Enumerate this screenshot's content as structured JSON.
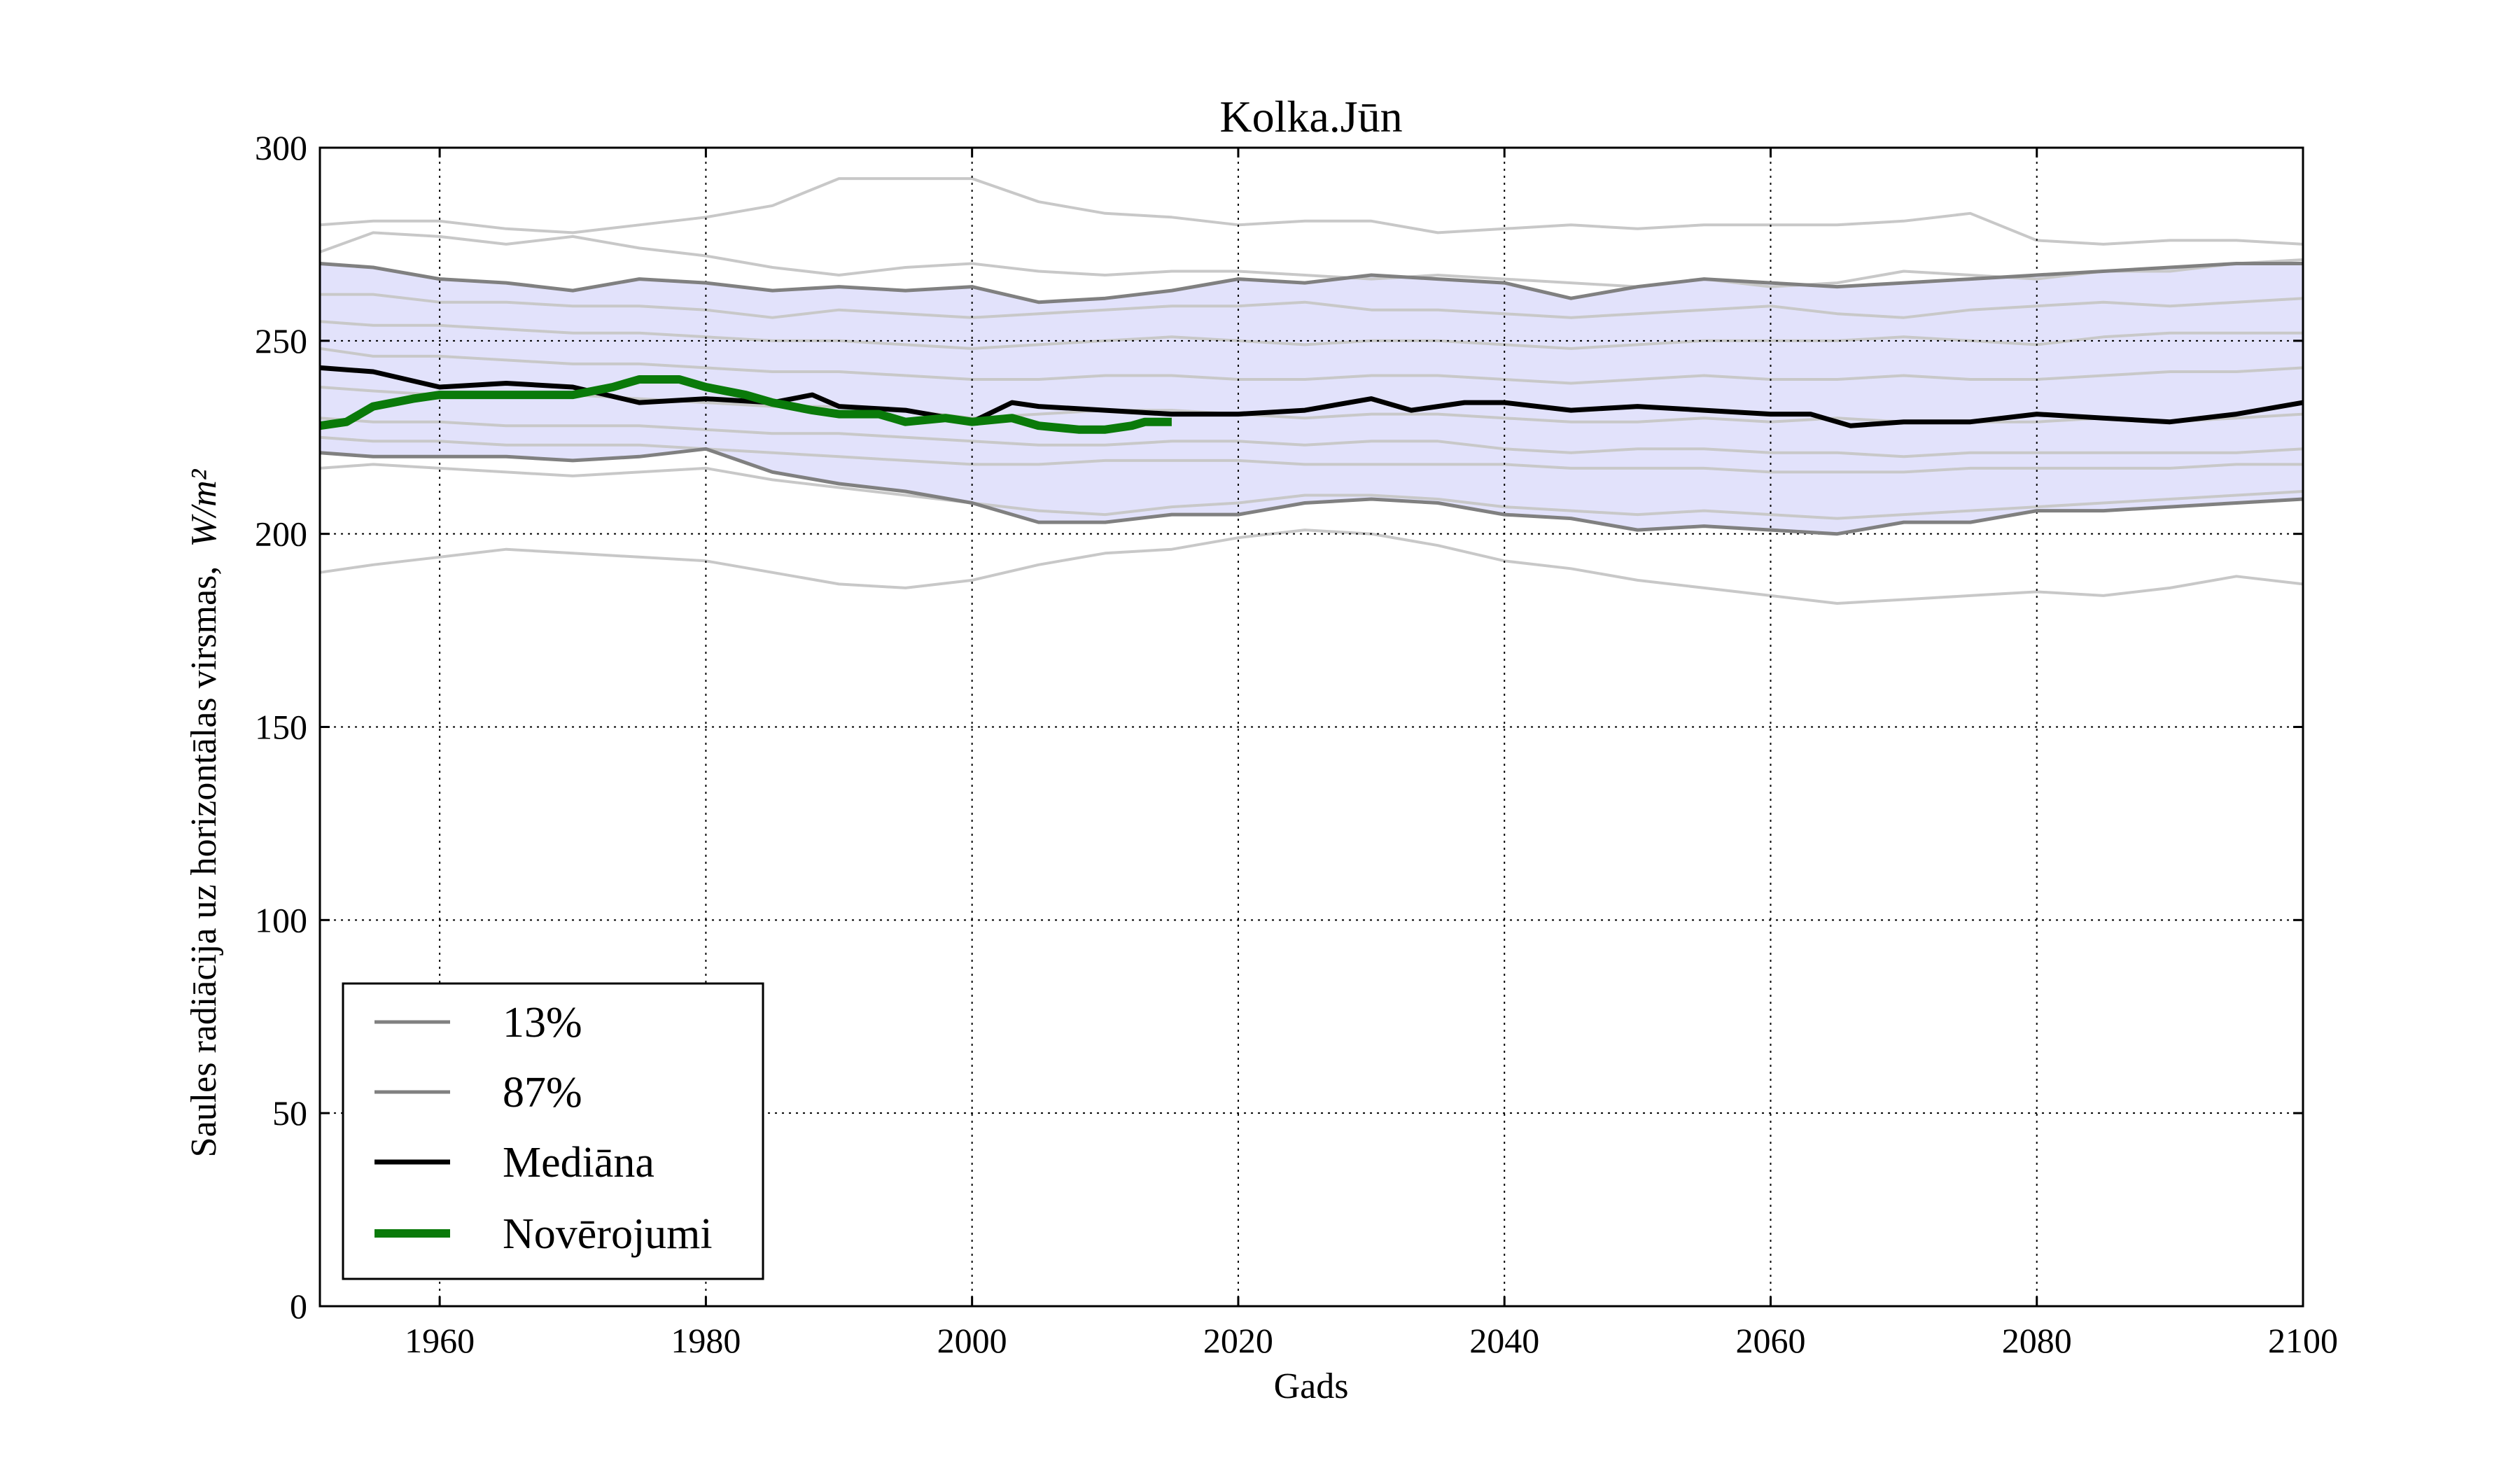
{
  "chart_data": {
    "type": "line",
    "title": "Kolka.Jūn",
    "xlabel": "Gads",
    "ylabel_text": "Saules radiācija uz horizontālas virsmas,",
    "ylabel_units": "W/m²",
    "xlim": [
      1951,
      2100
    ],
    "ylim": [
      0,
      300
    ],
    "xticks": [
      1960,
      1980,
      2000,
      2020,
      2040,
      2060,
      2080,
      2100
    ],
    "yticks": [
      0,
      50,
      100,
      150,
      200,
      250,
      300
    ],
    "grid": true,
    "legend_position": "lower-left",
    "colors": {
      "band": "#e2e2fb",
      "ensemble": "#c8c8c8",
      "percentile": "#808080",
      "median": "#000000",
      "observations": "#0a7a0a"
    },
    "series": [
      {
        "name": "13%",
        "x": [
          1951,
          1955,
          1960,
          1965,
          1970,
          1975,
          1980,
          1985,
          1990,
          1995,
          2000,
          2005,
          2010,
          2015,
          2020,
          2025,
          2030,
          2035,
          2040,
          2045,
          2050,
          2055,
          2060,
          2065,
          2070,
          2075,
          2080,
          2085,
          2090,
          2095,
          2100
        ],
        "y": [
          221,
          220,
          220,
          220,
          219,
          220,
          222,
          216,
          213,
          211,
          208,
          203,
          203,
          205,
          205,
          208,
          209,
          208,
          205,
          204,
          201,
          202,
          201,
          200,
          203,
          203,
          206,
          206,
          207,
          208,
          209
        ]
      },
      {
        "name": "87%",
        "x": [
          1951,
          1955,
          1960,
          1965,
          1970,
          1975,
          1980,
          1985,
          1990,
          1995,
          2000,
          2005,
          2010,
          2015,
          2020,
          2025,
          2030,
          2035,
          2040,
          2045,
          2050,
          2055,
          2060,
          2065,
          2070,
          2075,
          2080,
          2085,
          2090,
          2095,
          2100
        ],
        "y": [
          270,
          269,
          266,
          265,
          263,
          266,
          265,
          263,
          264,
          263,
          264,
          260,
          261,
          263,
          266,
          265,
          267,
          266,
          265,
          261,
          264,
          266,
          265,
          264,
          265,
          266,
          267,
          268,
          269,
          270,
          270
        ]
      },
      {
        "name": "Mediāna",
        "x": [
          1951,
          1955,
          1960,
          1965,
          1970,
          1975,
          1980,
          1985,
          1988,
          1990,
          1995,
          2000,
          2003,
          2005,
          2010,
          2015,
          2020,
          2025,
          2030,
          2033,
          2037,
          2040,
          2045,
          2050,
          2055,
          2060,
          2063,
          2066,
          2070,
          2075,
          2080,
          2085,
          2090,
          2095,
          2100
        ],
        "y": [
          243,
          242,
          238,
          239,
          238,
          234,
          235,
          234,
          236,
          233,
          232,
          229,
          234,
          233,
          232,
          231,
          231,
          232,
          235,
          232,
          234,
          234,
          232,
          233,
          232,
          231,
          231,
          228,
          229,
          229,
          231,
          230,
          229,
          231,
          234
        ]
      },
      {
        "name": "Novērojumi",
        "x": [
          1951,
          1953,
          1955,
          1958,
          1960,
          1965,
          1970,
          1973,
          1975,
          1978,
          1980,
          1983,
          1985,
          1988,
          1990,
          1993,
          1995,
          1998,
          2000,
          2003,
          2005,
          2008,
          2010,
          2012,
          2013,
          2015
        ],
        "y": [
          228,
          229,
          233,
          235,
          236,
          236,
          236,
          238,
          240,
          240,
          238,
          236,
          234,
          232,
          231,
          231,
          229,
          230,
          229,
          230,
          228,
          227,
          227,
          228,
          229,
          229
        ]
      }
    ],
    "ensemble": [
      [
        280,
        281,
        281,
        279,
        278,
        280,
        282,
        285,
        292,
        292,
        292,
        286,
        283,
        282,
        280,
        281,
        281,
        278,
        279,
        280,
        279,
        280,
        280,
        280,
        281,
        283,
        276,
        275,
        276,
        276,
        275
      ],
      [
        273,
        278,
        277,
        275,
        277,
        274,
        272,
        269,
        267,
        269,
        270,
        268,
        267,
        268,
        268,
        267,
        266,
        267,
        266,
        265,
        264,
        266,
        264,
        265,
        268,
        267,
        266,
        268,
        268,
        270,
        271
      ],
      [
        262,
        262,
        260,
        260,
        259,
        259,
        258,
        256,
        258,
        257,
        256,
        257,
        258,
        259,
        259,
        260,
        258,
        258,
        257,
        256,
        257,
        258,
        259,
        257,
        256,
        258,
        259,
        260,
        259,
        260,
        261
      ],
      [
        255,
        254,
        254,
        253,
        252,
        252,
        251,
        250,
        250,
        249,
        248,
        249,
        250,
        251,
        250,
        249,
        250,
        250,
        249,
        248,
        249,
        250,
        250,
        250,
        251,
        250,
        249,
        251,
        252,
        252,
        252
      ],
      [
        248,
        246,
        246,
        245,
        244,
        244,
        243,
        242,
        242,
        241,
        240,
        240,
        241,
        241,
        240,
        240,
        241,
        241,
        240,
        239,
        240,
        241,
        240,
        240,
        241,
        240,
        240,
        241,
        242,
        242,
        243
      ],
      [
        238,
        237,
        236,
        236,
        236,
        235,
        234,
        233,
        233,
        232,
        230,
        231,
        232,
        232,
        231,
        230,
        231,
        231,
        230,
        229,
        229,
        230,
        229,
        230,
        229,
        229,
        229,
        230,
        229,
        230,
        231
      ],
      [
        230,
        229,
        229,
        228,
        228,
        228,
        227,
        226,
        226,
        225,
        224,
        223,
        223,
        224,
        224,
        223,
        224,
        224,
        222,
        221,
        222,
        222,
        221,
        221,
        220,
        221,
        221,
        221,
        221,
        221,
        222
      ],
      [
        225,
        224,
        224,
        223,
        223,
        223,
        222,
        221,
        220,
        219,
        218,
        218,
        219,
        219,
        219,
        218,
        218,
        218,
        218,
        217,
        217,
        217,
        216,
        216,
        216,
        217,
        217,
        217,
        217,
        218,
        218
      ],
      [
        217,
        218,
        217,
        216,
        215,
        216,
        217,
        214,
        212,
        210,
        208,
        206,
        205,
        207,
        208,
        210,
        210,
        209,
        207,
        206,
        205,
        206,
        205,
        204,
        205,
        206,
        207,
        208,
        209,
        210,
        211
      ],
      [
        190,
        192,
        194,
        196,
        195,
        194,
        193,
        190,
        187,
        186,
        188,
        192,
        195,
        196,
        199,
        201,
        200,
        197,
        193,
        191,
        188,
        186,
        184,
        182,
        183,
        184,
        185,
        184,
        186,
        189,
        187
      ]
    ],
    "ensemble_x": [
      1951,
      1955,
      1960,
      1965,
      1970,
      1975,
      1980,
      1985,
      1990,
      1995,
      2000,
      2005,
      2010,
      2015,
      2020,
      2025,
      2030,
      2035,
      2040,
      2045,
      2050,
      2055,
      2060,
      2065,
      2070,
      2075,
      2080,
      2085,
      2090,
      2095,
      2100
    ]
  }
}
